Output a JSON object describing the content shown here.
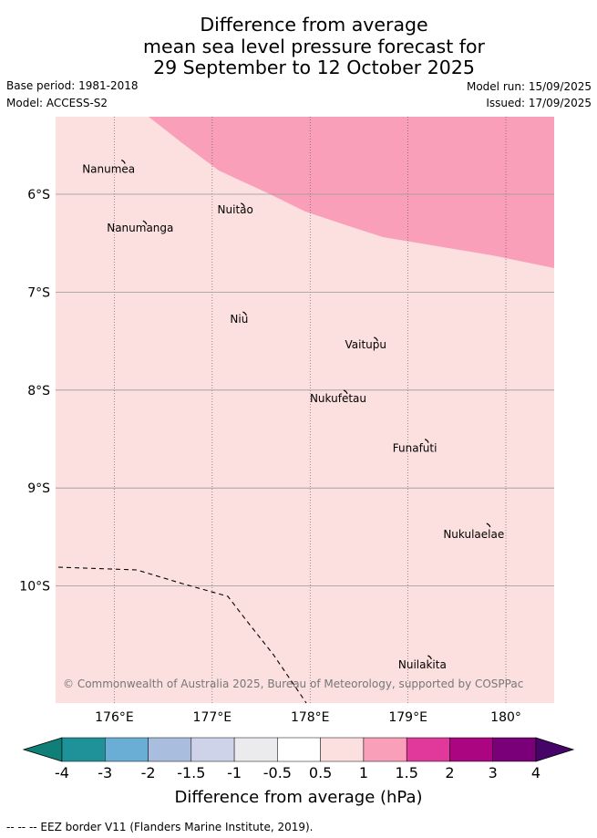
{
  "title_lines": [
    "Difference from average",
    "mean sea level pressure forecast for",
    "29 September to 12 October 2025"
  ],
  "meta": {
    "base_period": "Base period: 1981-2018",
    "model": "Model: ACCESS-S2",
    "model_run": "Model run: 15/09/2025",
    "issued": "Issued: 17/09/2025"
  },
  "map": {
    "lon_ticks": [
      "176°E",
      "177°E",
      "178°E",
      "179°E",
      "180°"
    ],
    "lat_ticks": [
      "6°S",
      "7°S",
      "8°S",
      "9°S",
      "10°S"
    ],
    "lon_range": [
      175.4,
      180.5
    ],
    "lat_range": [
      -11.2,
      -5.2
    ],
    "background_category_color": "#fcdfdf",
    "high_category_color": "#f99fba",
    "gridline_color": "#999999",
    "islands": [
      {
        "name": "Nanumea",
        "lon": 176.1,
        "lat": -5.67
      },
      {
        "name": "Nuitao",
        "lon": 177.32,
        "lat": -6.11
      },
      {
        "name": "Nanumanga",
        "lon": 176.32,
        "lat": -6.29
      },
      {
        "name": "Niu",
        "lon": 177.34,
        "lat": -7.22
      },
      {
        "name": "Vaitupu",
        "lon": 178.68,
        "lat": -7.48
      },
      {
        "name": "Nukufetau",
        "lon": 178.37,
        "lat": -8.02
      },
      {
        "name": "Funafuti",
        "lon": 179.2,
        "lat": -8.52
      },
      {
        "name": "Nukulaelae",
        "lon": 179.83,
        "lat": -9.38
      },
      {
        "name": "Nuilakita",
        "lon": 179.23,
        "lat": -10.73
      }
    ],
    "copyright": "© Commonwealth of Australia 2025, Bureau of Meteorology, supported by COSPPac"
  },
  "colorbar": {
    "tick_labels": [
      "-4",
      "-3",
      "-2",
      "-1.5",
      "-1",
      "-0.5",
      "0.5",
      "1",
      "1.5",
      "2",
      "3",
      "4"
    ],
    "colors": [
      "#0f7f78",
      "#1e9199",
      "#6aaed6",
      "#a9bedf",
      "#cfd3ea",
      "#ebebee",
      "#ffffff",
      "#fcdfdf",
      "#f99fba",
      "#e0389b",
      "#ab0581",
      "#7a0079",
      "#460469"
    ],
    "label": "Difference from average (hPa)"
  },
  "footnote": "--  --  -- EEZ border V11 (Flanders Marine Institute, 2019)."
}
